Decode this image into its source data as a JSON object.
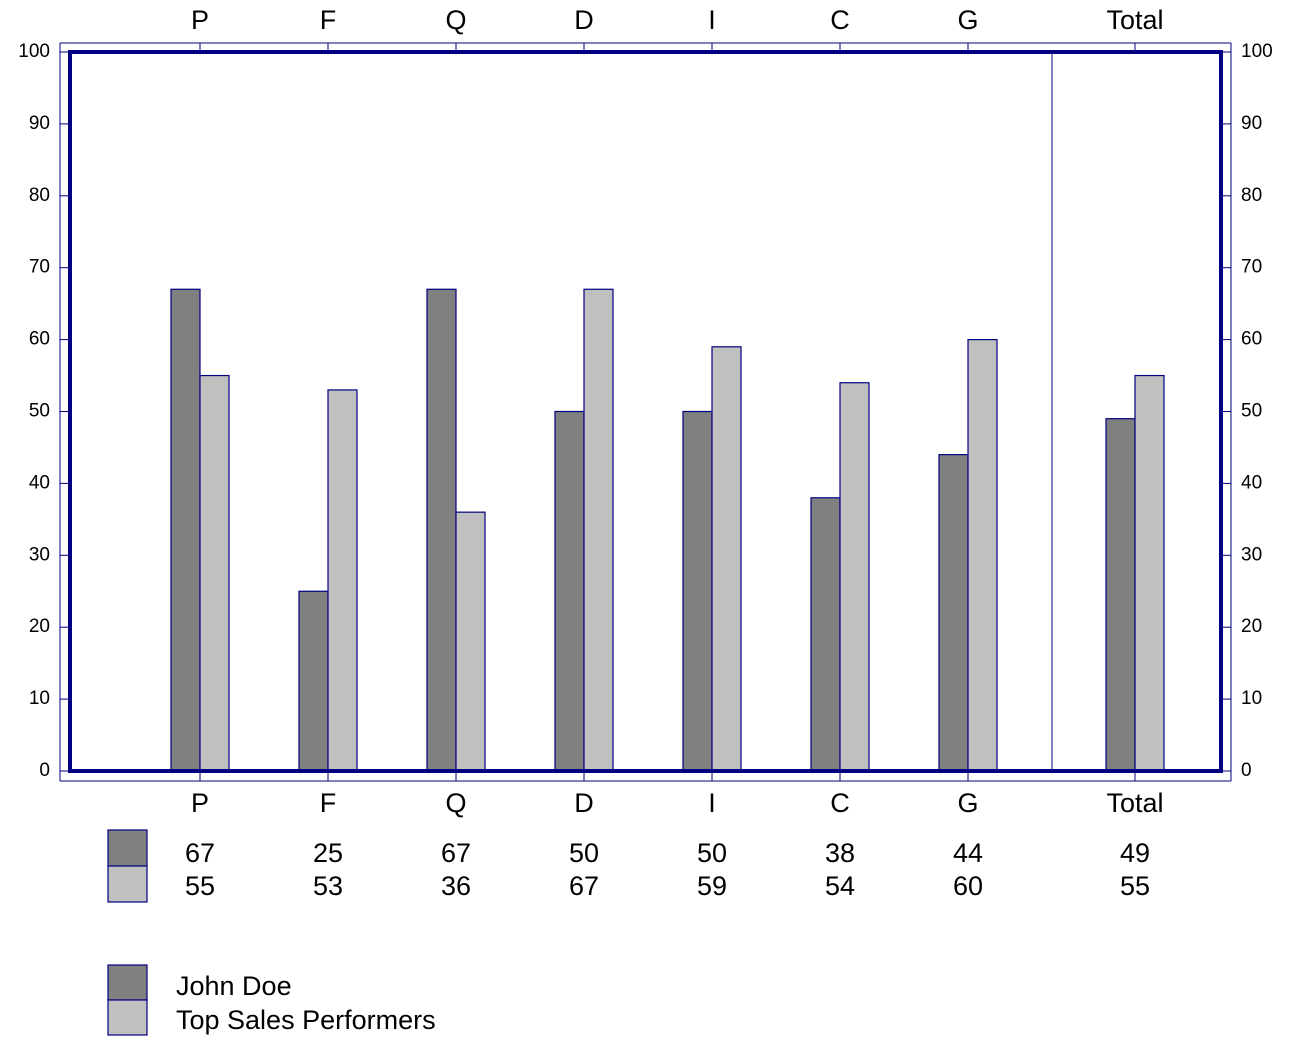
{
  "chart_data": {
    "type": "bar",
    "categories": [
      "P",
      "F",
      "Q",
      "D",
      "I",
      "C",
      "G",
      "Total"
    ],
    "series": [
      {
        "name": "John Doe",
        "color": "#808080",
        "values": [
          67,
          25,
          67,
          50,
          50,
          38,
          44,
          49
        ]
      },
      {
        "name": "Top Sales Performers",
        "color": "#c0c0c0",
        "values": [
          55,
          53,
          36,
          67,
          59,
          54,
          60,
          55
        ]
      }
    ],
    "ylim": [
      0,
      100
    ],
    "yticks": [
      0,
      10,
      20,
      30,
      40,
      50,
      60,
      70,
      80,
      90,
      100
    ],
    "edge_color": "#000080"
  }
}
